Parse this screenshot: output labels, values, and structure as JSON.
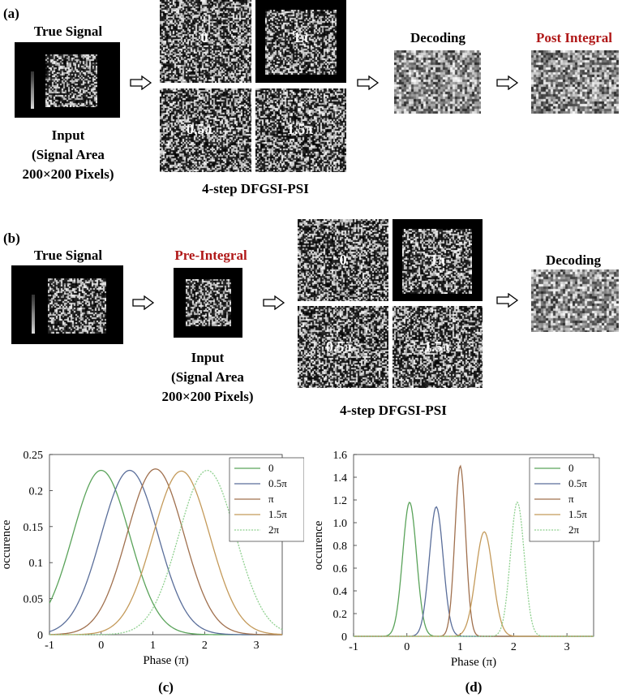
{
  "panel_a": {
    "tag": "(a)",
    "true_signal": "True Signal",
    "input_lines": [
      "Input",
      "(Signal Area",
      "200×200 Pixels)"
    ],
    "phases": [
      "0",
      "1π",
      "0.5π",
      "1.5π"
    ],
    "method": "4-step DFGSI-PSI",
    "decoding": "Decoding",
    "post_integral": "Post Integral",
    "accent_color": "#b01818"
  },
  "panel_b": {
    "tag": "(b)",
    "true_signal": "True Signal",
    "pre_integral": "Pre-Integral",
    "input_lines": [
      "Input",
      "(Signal Area",
      "200×200 Pixels)"
    ],
    "phases": [
      "0",
      "1π",
      "0.5π",
      "1.5π"
    ],
    "method": "4-step DFGSI-PSI",
    "decoding": "Decoding"
  },
  "chart_data": [
    {
      "type": "line",
      "panel": "(c)",
      "xlabel": "Phase (π)",
      "ylabel": "occurence",
      "xlim": [
        -1,
        3.5
      ],
      "ylim": [
        0,
        0.25
      ],
      "xticks": [
        "-1",
        "0",
        "1",
        "2",
        "3"
      ],
      "yticks": [
        "0",
        "0.05",
        "0.1",
        "0.15",
        "0.2",
        "0.25"
      ],
      "legend_position": "top-right",
      "series": [
        {
          "name": "0",
          "color": "#5aa35a",
          "dash": false,
          "peak_x": 0.0,
          "peak_y": 0.228,
          "sigma": 0.55
        },
        {
          "name": "0.5π",
          "color": "#5a6e9a",
          "dash": false,
          "peak_x": 0.55,
          "peak_y": 0.228,
          "sigma": 0.55
        },
        {
          "name": "π",
          "color": "#a0704e",
          "dash": false,
          "peak_x": 1.05,
          "peak_y": 0.23,
          "sigma": 0.55
        },
        {
          "name": "1.5π",
          "color": "#c49a5a",
          "dash": false,
          "peak_x": 1.55,
          "peak_y": 0.227,
          "sigma": 0.55
        },
        {
          "name": "2π",
          "color": "#8fd08f",
          "dash": true,
          "peak_x": 2.05,
          "peak_y": 0.228,
          "sigma": 0.55
        }
      ]
    },
    {
      "type": "line",
      "panel": "(d)",
      "xlabel": "Phase (π)",
      "ylabel": "occurence",
      "xlim": [
        -1,
        3.5
      ],
      "ylim": [
        0,
        1.6
      ],
      "xticks": [
        "-1",
        "0",
        "1",
        "2",
        "3"
      ],
      "yticks": [
        "0",
        "0.2",
        "0.4",
        "0.6",
        "0.8",
        "1.0",
        "1.2",
        "1.4",
        "1.6"
      ],
      "legend_position": "top-right",
      "series": [
        {
          "name": "0",
          "color": "#5aa35a",
          "dash": false,
          "peak_x": 0.05,
          "peak_y": 1.18,
          "sigma": 0.13
        },
        {
          "name": "0.5π",
          "color": "#5a6e9a",
          "dash": false,
          "peak_x": 0.55,
          "peak_y": 1.14,
          "sigma": 0.13
        },
        {
          "name": "π",
          "color": "#a0704e",
          "dash": false,
          "peak_x": 1.0,
          "peak_y": 1.5,
          "sigma": 0.1
        },
        {
          "name": "1.5π",
          "color": "#c49a5a",
          "dash": false,
          "peak_x": 1.45,
          "peak_y": 0.92,
          "sigma": 0.16
        },
        {
          "name": "2π",
          "color": "#8fd08f",
          "dash": true,
          "peak_x": 2.07,
          "peak_y": 1.18,
          "sigma": 0.13
        }
      ]
    }
  ]
}
